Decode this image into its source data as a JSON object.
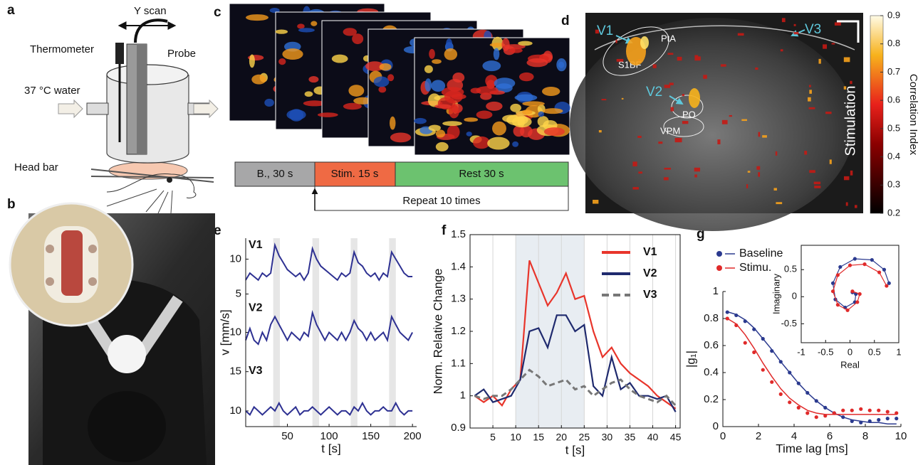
{
  "panel_labels": [
    "a",
    "b",
    "c",
    "d",
    "e",
    "f",
    "g"
  ],
  "setup_a": {
    "scan": "Y scan",
    "thermometer": "Thermometer",
    "probe": "Probe",
    "water": "37 °C water",
    "head_bar": "Head bar"
  },
  "protocol_c": {
    "baseline": "B., 30 s",
    "stimulus": "Stim. 15 s",
    "rest": "Rest 30 s",
    "repeat": "Repeat 10 times"
  },
  "map_d": {
    "regions": [
      "V1",
      "V3",
      "V2",
      "PtA",
      "S1BF",
      "PO",
      "VPM"
    ],
    "condition": "Stimulation",
    "colorbar": {
      "label": "Correlation Index",
      "lim": [
        0.2,
        0.9
      ],
      "ticks": [
        0.2,
        0.3,
        0.4,
        0.5,
        0.6,
        0.7,
        0.8,
        0.9
      ]
    }
  },
  "chart_data": [
    {
      "type": "line-stack",
      "xlabel": "t [s]",
      "ylabel": "v [mm/s]",
      "xlim": [
        0,
        205
      ],
      "xticks": [
        50,
        100,
        150,
        200
      ],
      "x": [
        0,
        5,
        10,
        15,
        20,
        25,
        30,
        35,
        40,
        45,
        50,
        55,
        60,
        65,
        70,
        75,
        80,
        85,
        90,
        95,
        100,
        105,
        110,
        115,
        120,
        125,
        130,
        135,
        140,
        145,
        150,
        155,
        160,
        165,
        170,
        175,
        180,
        185,
        190,
        195,
        200
      ],
      "shaded": [
        [
          33,
          41
        ],
        [
          80,
          88
        ],
        [
          126,
          134
        ],
        [
          172,
          180
        ]
      ],
      "series": [
        {
          "name": "V1",
          "color": "#2e3192",
          "ylim": [
            4,
            13
          ],
          "yticks": [
            5,
            10
          ],
          "values": [
            7,
            8,
            7.5,
            7,
            8,
            7.5,
            8,
            12,
            10.5,
            9.5,
            8.5,
            8,
            7.5,
            8,
            7,
            8,
            11.5,
            10,
            9,
            8.5,
            8,
            7.5,
            7,
            8,
            7.5,
            8,
            11,
            9.5,
            9,
            8,
            7.5,
            8,
            7,
            8,
            7.5,
            11,
            10,
            9,
            8,
            7.5,
            7.5
          ]
        },
        {
          "name": "V2",
          "color": "#2e3192",
          "ylim": [
            6,
            14
          ],
          "yticks": [
            10
          ],
          "values": [
            9,
            10.5,
            9,
            8.5,
            10,
            9,
            11,
            12,
            11,
            10,
            9,
            10,
            9.5,
            9,
            10,
            9.5,
            12.5,
            11,
            10,
            9,
            10,
            9.5,
            9,
            10,
            9,
            10,
            11.5,
            10.5,
            10,
            9,
            10,
            9,
            9.5,
            10,
            9,
            12,
            11,
            10,
            9.5,
            9,
            10
          ]
        },
        {
          "name": "V3",
          "color": "#2e3192",
          "ylim": [
            8,
            16
          ],
          "yticks": [
            10,
            15
          ],
          "values": [
            10,
            9.5,
            10.5,
            10,
            9.5,
            10,
            10.5,
            10,
            11,
            10,
            9.5,
            10,
            10.5,
            9.5,
            10,
            10,
            10.5,
            10,
            9.5,
            10,
            10.5,
            10,
            9.5,
            10,
            10,
            9.5,
            10.5,
            10,
            11,
            10,
            9.5,
            10,
            10,
            10.5,
            10,
            10,
            11,
            10,
            9.5,
            10,
            10
          ]
        }
      ]
    },
    {
      "type": "line",
      "xlabel": "t [s]",
      "ylabel": "Norm. Relative Change",
      "xlim": [
        0,
        46
      ],
      "xticks": [
        5,
        10,
        15,
        20,
        25,
        30,
        35,
        40,
        45
      ],
      "ylim": [
        0.9,
        1.5
      ],
      "yticks": [
        0.9,
        1,
        1.1,
        1.2,
        1.3,
        1.4,
        1.5
      ],
      "grid": true,
      "shaded": [
        10,
        25
      ],
      "legend": "upper right",
      "x": [
        1,
        3,
        5,
        7,
        9,
        11,
        13,
        15,
        17,
        19,
        21,
        23,
        25,
        27,
        29,
        31,
        33,
        35,
        37,
        39,
        41,
        43,
        45
      ],
      "series": [
        {
          "name": "V1",
          "color": "#e8352b",
          "values": [
            1.0,
            0.98,
            1.0,
            0.97,
            1.02,
            1.05,
            1.42,
            1.35,
            1.28,
            1.32,
            1.38,
            1.3,
            1.31,
            1.2,
            1.12,
            1.15,
            1.1,
            1.07,
            1.05,
            1.03,
            1.0,
            0.98,
            0.96
          ]
        },
        {
          "name": "V2",
          "color": "#1f2a6e",
          "values": [
            1.0,
            1.02,
            0.98,
            0.99,
            1.0,
            1.05,
            1.2,
            1.21,
            1.15,
            1.25,
            1.25,
            1.2,
            1.22,
            1.03,
            1.0,
            1.12,
            1.02,
            1.04,
            1.0,
            1.0,
            0.99,
            1.0,
            0.95
          ]
        },
        {
          "name": "V3",
          "color": "#777777",
          "dash": true,
          "values": [
            1.0,
            0.99,
            1.0,
            1.0,
            1.02,
            1.05,
            1.08,
            1.06,
            1.03,
            1.04,
            1.05,
            1.02,
            1.03,
            1.0,
            1.02,
            1.04,
            1.05,
            1.02,
            1.0,
            0.99,
            0.98,
            1.0,
            0.97
          ]
        }
      ]
    },
    {
      "type": "scatter-fit",
      "xlabel": "Time lag [ms]",
      "ylabel": "|g₁|",
      "xlim": [
        0,
        10
      ],
      "xticks": [
        0,
        2,
        4,
        6,
        8,
        10
      ],
      "ylim": [
        0,
        1
      ],
      "yticks": [
        0,
        0.2,
        0.4,
        0.6,
        0.8,
        1
      ],
      "legend": "upper left",
      "x": [
        0.25,
        0.75,
        1.25,
        1.75,
        2.25,
        2.75,
        3.25,
        3.75,
        4.25,
        4.75,
        5.25,
        5.75,
        6.25,
        6.75,
        7.25,
        7.75,
        8.25,
        8.75,
        9.25,
        9.75
      ],
      "series": [
        {
          "name": "Baseline",
          "color": "#2b3a8f",
          "values": [
            0.847,
            0.824,
            0.78,
            0.72,
            0.65,
            0.56,
            0.48,
            0.4,
            0.32,
            0.25,
            0.19,
            0.14,
            0.1,
            0.07,
            0.04,
            0.03,
            0.04,
            0.05,
            0.06,
            0.06
          ],
          "fit": [
            0.85,
            0.83,
            0.79,
            0.73,
            0.65,
            0.57,
            0.48,
            0.4,
            0.32,
            0.25,
            0.19,
            0.14,
            0.1,
            0.07,
            0.05,
            0.04,
            0.03,
            0.03,
            0.02,
            0.02
          ]
        },
        {
          "name": "Stimu.",
          "color": "#e02a2a",
          "values": [
            0.8,
            0.75,
            0.62,
            0.55,
            0.42,
            0.33,
            0.24,
            0.18,
            0.14,
            0.1,
            0.07,
            0.08,
            0.1,
            0.12,
            0.12,
            0.13,
            0.12,
            0.12,
            0.11,
            0.1
          ],
          "fit": [
            0.8,
            0.76,
            0.68,
            0.58,
            0.47,
            0.37,
            0.28,
            0.21,
            0.16,
            0.12,
            0.1,
            0.09,
            0.09,
            0.09,
            0.09,
            0.09,
            0.09,
            0.09,
            0.09,
            0.09
          ]
        }
      ]
    },
    {
      "type": "scatter",
      "xlabel": "Real",
      "ylabel": "Imaginary",
      "xlim": [
        -1,
        1
      ],
      "ylim": [
        -0.85,
        0.95
      ],
      "xticks": [
        -1,
        -0.5,
        0,
        0.5,
        1
      ],
      "yticks": [
        -0.5,
        0,
        0.5
      ],
      "series": [
        {
          "color": "#2b3a8f",
          "x": [
            0.8,
            0.7,
            0.45,
            0.1,
            -0.2,
            -0.35,
            -0.3,
            -0.1,
            0.1,
            0.12,
            0.05
          ],
          "values": [
            0.25,
            0.5,
            0.68,
            0.7,
            0.55,
            0.25,
            -0.05,
            -0.2,
            -0.1,
            0.05,
            0.08
          ]
        },
        {
          "color": "#e02a2a",
          "x": [
            0.75,
            0.6,
            0.3,
            0,
            -0.25,
            -0.35,
            -0.25,
            -0.05,
            0.15,
            0.2,
            0.05
          ],
          "values": [
            0.2,
            0.45,
            0.6,
            0.58,
            0.4,
            0.1,
            -0.15,
            -0.25,
            -0.1,
            0.05,
            0.1
          ]
        }
      ]
    }
  ]
}
